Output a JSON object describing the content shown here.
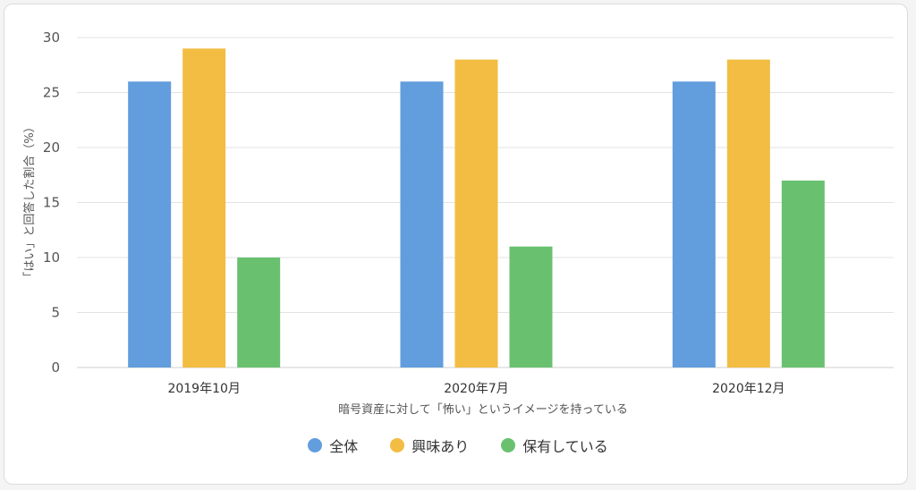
{
  "chart_data": {
    "type": "bar",
    "categories": [
      "2019年10月",
      "2020年7月",
      "2020年12月"
    ],
    "series": [
      {
        "name": "全体",
        "values": [
          26,
          26,
          26
        ],
        "color": "#629ddd"
      },
      {
        "name": "興味あり",
        "values": [
          29,
          28,
          28
        ],
        "color": "#f2bd42"
      },
      {
        "name": "保有している",
        "values": [
          10,
          11,
          17
        ],
        "color": "#69c170"
      }
    ],
    "xlabel": "暗号資産に対して「怖い」というイメージを持っている",
    "ylabel": "「はい」と回答した割合（%）",
    "ylim": [
      0,
      30
    ],
    "yticks": [
      0,
      5,
      10,
      15,
      20,
      25,
      30
    ],
    "grid": true,
    "legend_position": "bottom"
  }
}
